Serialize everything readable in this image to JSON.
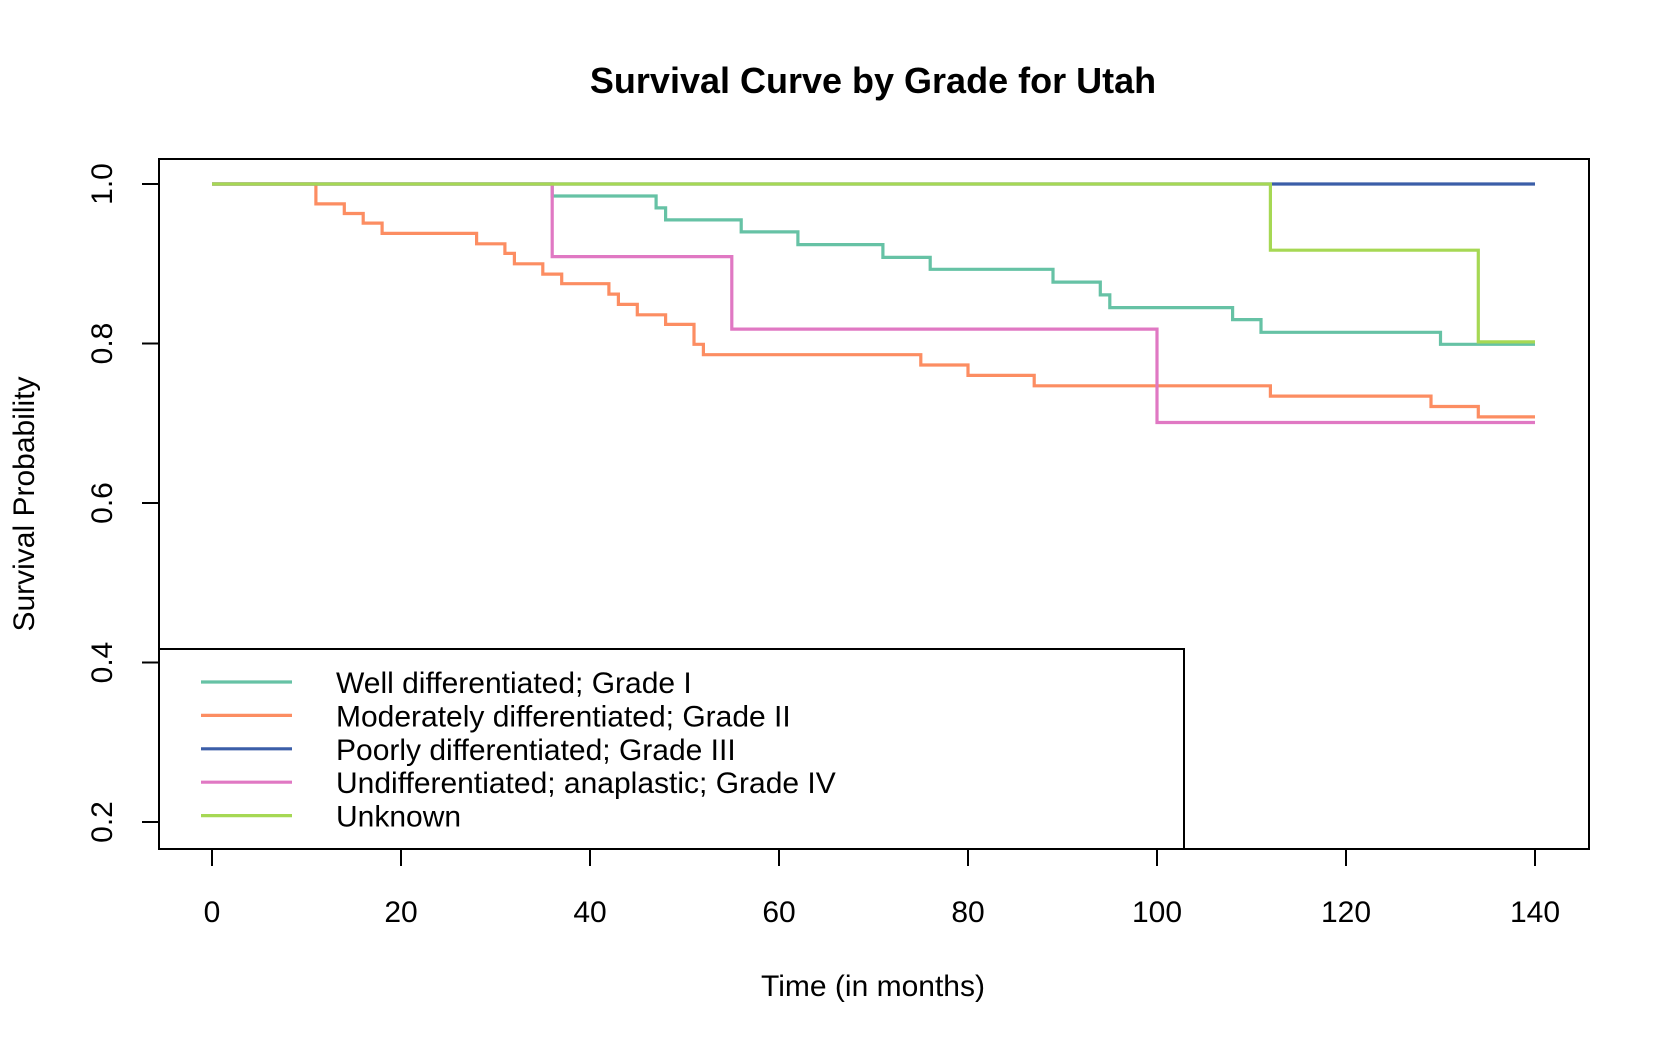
{
  "chart_data": {
    "type": "line",
    "step": true,
    "title": "Survival Curve by Grade for Utah",
    "xlabel": "Time (in months)",
    "ylabel": "Survival Probability",
    "xlim": [
      0,
      140
    ],
    "ylim": [
      0.2,
      1.0
    ],
    "xticks": [
      0,
      20,
      40,
      60,
      80,
      100,
      120,
      140
    ],
    "yticks": [
      0.2,
      0.4,
      0.6,
      0.8,
      1.0
    ],
    "x_tick_labels": [
      "0",
      "20",
      "40",
      "60",
      "80",
      "100",
      "120",
      "140"
    ],
    "y_tick_labels": [
      "0.2",
      "0.4",
      "0.6",
      "0.8",
      "1.0"
    ],
    "grid": false,
    "legend_position": "bottom-left",
    "series": [
      {
        "name": "Well differentiated; Grade I",
        "color": "#66c2a5",
        "x": [
          0,
          36,
          47,
          48,
          56,
          62,
          71,
          76,
          89,
          94,
          95,
          108,
          111,
          130,
          140
        ],
        "y": [
          1.0,
          0.985,
          0.97,
          0.955,
          0.94,
          0.924,
          0.908,
          0.893,
          0.877,
          0.861,
          0.845,
          0.83,
          0.814,
          0.799,
          0.799
        ]
      },
      {
        "name": "Moderately differentiated; Grade II",
        "color": "#fc8d62",
        "x": [
          0,
          11,
          14,
          16,
          18,
          28,
          31,
          32,
          35,
          37,
          42,
          43,
          45,
          48,
          51,
          52,
          75,
          80,
          87,
          112,
          129,
          134,
          140
        ],
        "y": [
          1.0,
          0.975,
          0.963,
          0.951,
          0.938,
          0.925,
          0.913,
          0.9,
          0.887,
          0.875,
          0.862,
          0.849,
          0.836,
          0.824,
          0.799,
          0.786,
          0.773,
          0.76,
          0.747,
          0.734,
          0.721,
          0.708,
          0.708
        ]
      },
      {
        "name": "Poorly differentiated; Grade III",
        "color": "#3b5ea8",
        "x": [
          0,
          140
        ],
        "y": [
          1.0,
          1.0
        ]
      },
      {
        "name": "Undifferentiated; anaplastic; Grade IV",
        "color": "#e078c3",
        "x": [
          0,
          36,
          55,
          100,
          140
        ],
        "y": [
          1.0,
          0.909,
          0.818,
          0.701,
          0.701
        ]
      },
      {
        "name": "Unknown",
        "color": "#a6d854",
        "x": [
          0,
          112,
          134,
          140
        ],
        "y": [
          1.0,
          0.917,
          0.802,
          0.802
        ]
      }
    ]
  }
}
